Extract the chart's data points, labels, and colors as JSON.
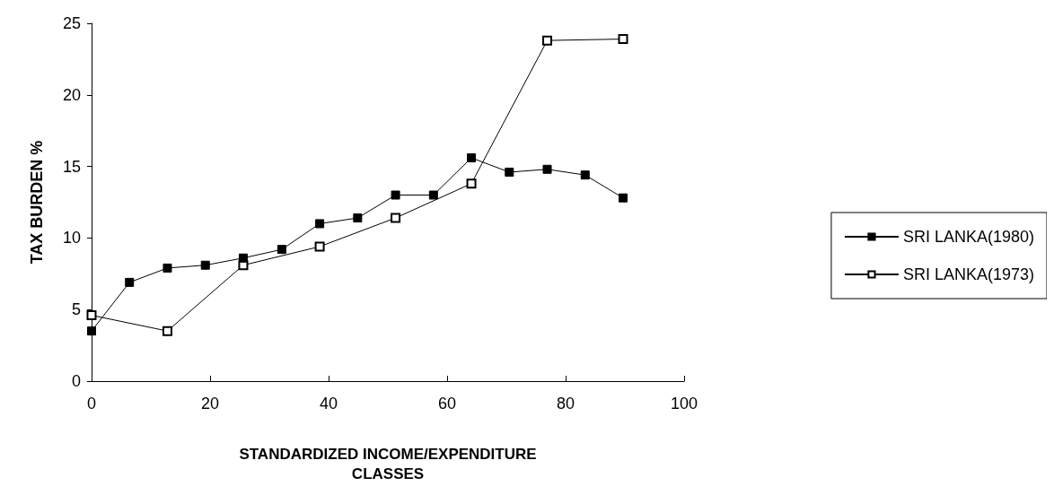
{
  "chart_data": {
    "type": "line",
    "xlabel": "STANDARDIZED INCOME/EXPENDITURE\nCLASSES",
    "ylabel": "TAX BURDEN %",
    "xlim": [
      0,
      100
    ],
    "xticks": [
      0,
      20,
      40,
      60,
      80,
      100
    ],
    "ylim": [
      0,
      25
    ],
    "yticks": [
      0,
      5,
      10,
      15,
      20,
      25
    ],
    "grid": false,
    "legend": "right",
    "marker": "square",
    "line_style": "solid",
    "series": [
      {
        "name": "SRI LANKA(1980)",
        "color": "#000000",
        "x": [
          0,
          6.4,
          12.8,
          19.2,
          25.6,
          32.1,
          38.5,
          44.9,
          51.3,
          57.7,
          64.1,
          70.5,
          76.9,
          83.3,
          89.7
        ],
        "values": [
          3.5,
          6.9,
          7.9,
          8.1,
          8.6,
          9.2,
          11.0,
          11.4,
          13.0,
          13.0,
          15.6,
          14.6,
          14.8,
          14.4,
          12.8
        ]
      },
      {
        "name": "SRI LANKA(1973)",
        "color": "#000000",
        "x": [
          0,
          12.8,
          25.6,
          38.5,
          51.3,
          64.1,
          76.9,
          89.7
        ],
        "values": [
          4.6,
          3.5,
          8.1,
          9.4,
          11.4,
          13.8,
          23.8,
          23.9
        ]
      }
    ]
  }
}
